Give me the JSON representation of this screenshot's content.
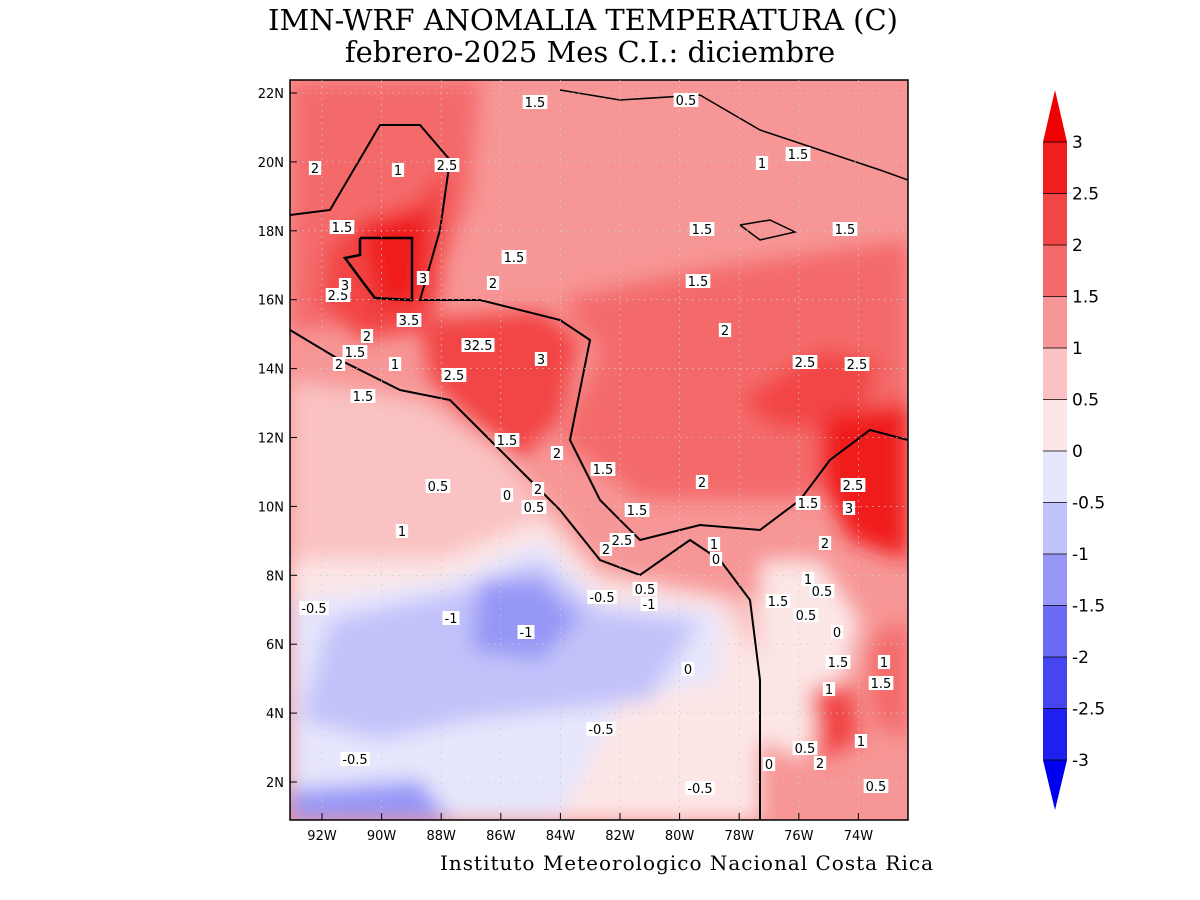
{
  "title": [
    "IMN-WRF  ANOMALIA TEMPERATURA (C)",
    "febrero-2025 Mes C.I.: diciembre"
  ],
  "map": {
    "lon_ticks": [
      "92W",
      "90W",
      "88W",
      "86W",
      "84W",
      "82W",
      "80W",
      "78W",
      "76W",
      "74W"
    ],
    "lat_ticks": [
      "22N",
      "20N",
      "18N",
      "16N",
      "14N",
      "12N",
      "10N",
      "8N",
      "6N",
      "4N",
      "2N"
    ]
  },
  "colorbar": {
    "levels": [
      3,
      2.5,
      2,
      1.5,
      1,
      0.5,
      0,
      -0.5,
      -1,
      -1.5,
      -2,
      -2.5,
      -3
    ],
    "colors": [
      "#f00000",
      "#f01f1f",
      "#f24545",
      "#f46a6a",
      "#f79696",
      "#fac2c2",
      "#fde6e6",
      "#e6e6fd",
      "#c2c2fa",
      "#9696f7",
      "#6a6af4",
      "#4545f2",
      "#1f1ff0",
      "#0000f0"
    ]
  },
  "contour_labels": [
    "1.5",
    "0.5",
    "2",
    "1",
    "2.5",
    "1",
    "1.5",
    "1.5",
    "1.5",
    "1.5",
    "1.5",
    "3",
    "2",
    "1.5",
    "2.5",
    "3",
    "3.5",
    "2",
    "32.5",
    "2",
    "3",
    "1.5",
    "2",
    "1",
    "2.5",
    "2.5",
    "2.5",
    "1.5",
    "1.5",
    "2",
    "1.5",
    "2",
    "0.5",
    "0",
    "2",
    "2.5",
    "1.5",
    "3",
    "0.5",
    "1.5",
    "1",
    "2.5",
    "2",
    "1",
    "2",
    "0",
    "1",
    "0.5",
    "-0.5",
    "-0.5",
    "0.5",
    "-1",
    "1.5",
    "0.5",
    "-1",
    "-1",
    "0",
    "1.5",
    "1",
    "0",
    "1.5",
    "1",
    "-0.5",
    "-0.5",
    "0.5",
    "1",
    "0",
    "2",
    "0.5",
    "-0.5"
  ],
  "footer": "Instituto Meteorologico Nacional Costa Rica"
}
